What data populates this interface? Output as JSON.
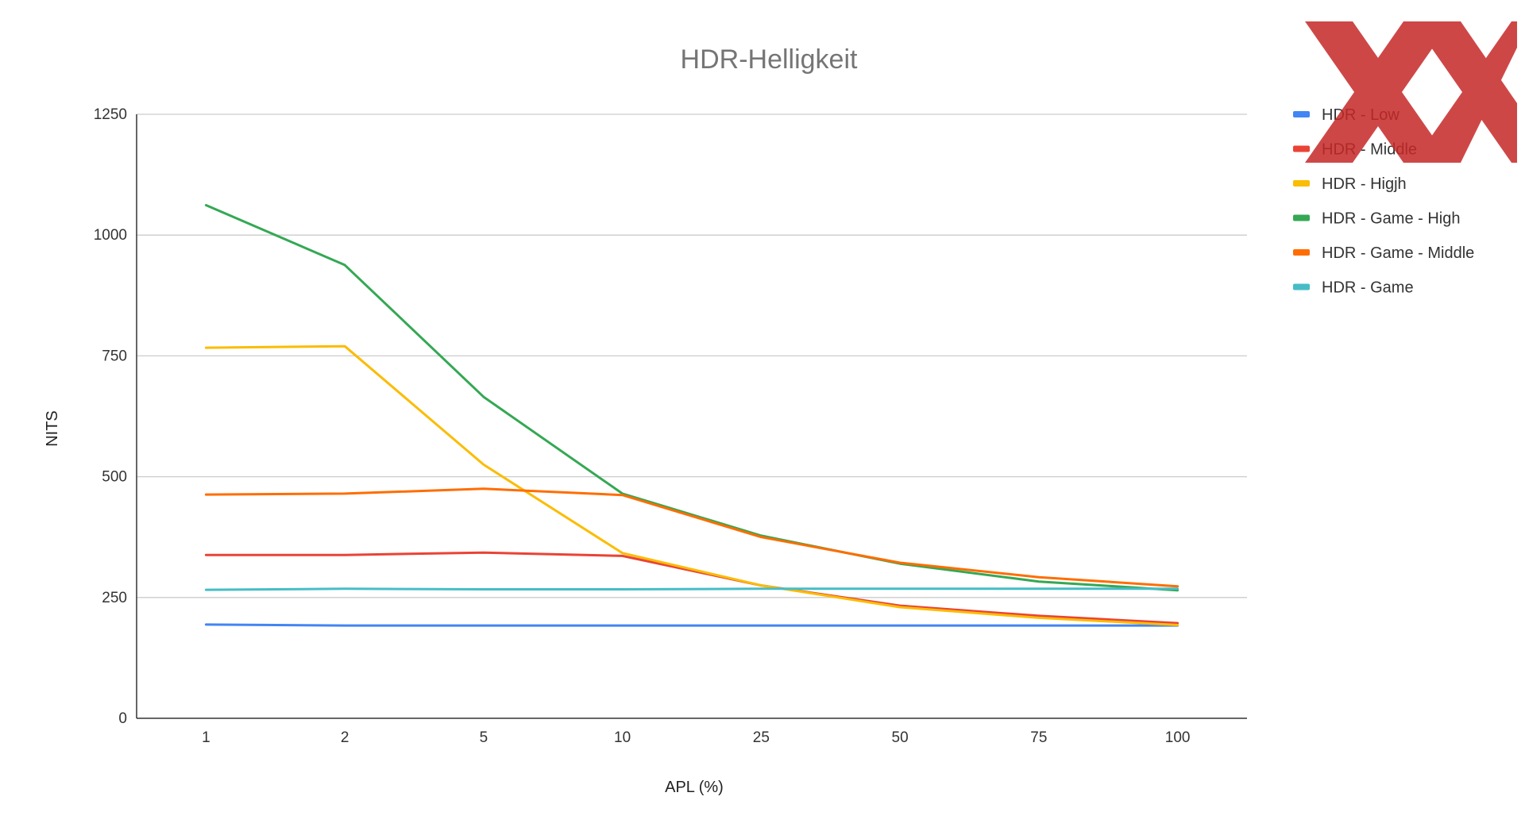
{
  "chart_data": {
    "type": "line",
    "title": "HDR-Helligkeit",
    "xlabel": "APL (%)",
    "ylabel": "NITS",
    "categories": [
      "1",
      "2",
      "5",
      "10",
      "25",
      "50",
      "75",
      "100"
    ],
    "yticks": [
      "0",
      "250",
      "500",
      "750",
      "1000",
      "1250"
    ],
    "ylim": [
      0,
      1250
    ],
    "grid": true,
    "legend_position": "right",
    "series": [
      {
        "name": "HDR - Low",
        "color": "#4285F4",
        "values": [
          194,
          192,
          192,
          192,
          192,
          192,
          192,
          192
        ]
      },
      {
        "name": "HDR - Middle",
        "color": "#EA4335",
        "values": [
          338,
          338,
          343,
          336,
          275,
          233,
          212,
          197
        ]
      },
      {
        "name": "HDR - Higjh",
        "color": "#FBBC04",
        "values": [
          767,
          770,
          525,
          342,
          275,
          230,
          208,
          193
        ]
      },
      {
        "name": "HDR - Game - High",
        "color": "#34A853",
        "values": [
          1062,
          938,
          665,
          465,
          378,
          320,
          283,
          265
        ]
      },
      {
        "name": "HDR - Game - Middle",
        "color": "#FF6D01",
        "values": [
          463,
          465,
          475,
          462,
          375,
          322,
          292,
          273
        ]
      },
      {
        "name": "HDR - Game",
        "color": "#46BDC6",
        "values": [
          266,
          268,
          267,
          267,
          268,
          268,
          268,
          268
        ]
      }
    ]
  },
  "watermark": {
    "text": "XX",
    "color": "#C62828"
  }
}
